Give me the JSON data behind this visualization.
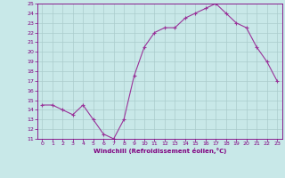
{
  "x": [
    0,
    1,
    2,
    3,
    4,
    5,
    6,
    7,
    8,
    9,
    10,
    11,
    12,
    13,
    14,
    15,
    16,
    17,
    18,
    19,
    20,
    21,
    22,
    23
  ],
  "y": [
    14.5,
    14.5,
    14.0,
    13.5,
    14.5,
    13.0,
    11.5,
    11.0,
    13.0,
    17.5,
    20.5,
    22.0,
    22.5,
    22.5,
    23.5,
    24.0,
    24.5,
    25.0,
    24.0,
    23.0,
    22.5,
    20.5,
    19.0,
    17.0
  ],
  "xlabel": "Windchill (Refroidissement éolien,°C)",
  "ylim": [
    11,
    25
  ],
  "xlim_min": -0.5,
  "xlim_max": 23.5,
  "yticks": [
    11,
    12,
    13,
    14,
    15,
    16,
    17,
    18,
    19,
    20,
    21,
    22,
    23,
    24,
    25
  ],
  "xticks": [
    0,
    1,
    2,
    3,
    4,
    5,
    6,
    7,
    8,
    9,
    10,
    11,
    12,
    13,
    14,
    15,
    16,
    17,
    18,
    19,
    20,
    21,
    22,
    23
  ],
  "line_color": "#993399",
  "marker": "+",
  "bg_color": "#c8e8e8",
  "grid_color": "#aacccc",
  "label_color": "#800080",
  "spine_color": "#800080"
}
